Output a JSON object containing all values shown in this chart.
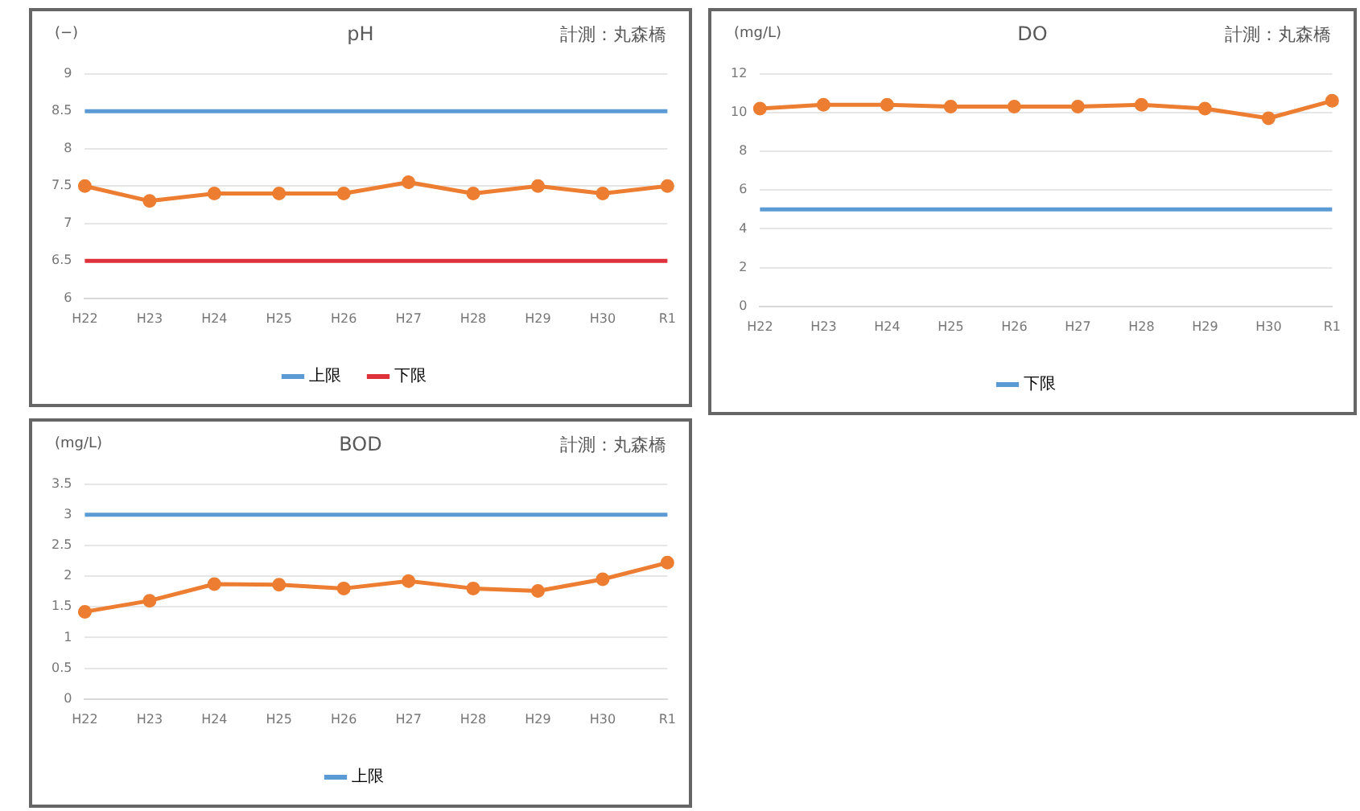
{
  "chart_data": [
    {
      "type": "line",
      "title": "pH",
      "subtitle": "計測：丸森橋",
      "ylabel": "(−)",
      "categories": [
        "H22",
        "H23",
        "H24",
        "H25",
        "H26",
        "H27",
        "H28",
        "H29",
        "H30",
        "R1"
      ],
      "ylim": [
        6,
        9
      ],
      "yticks": [
        6,
        6.5,
        7,
        7.5,
        8,
        8.5,
        9
      ],
      "grid": "y",
      "legend": "bottom",
      "series": [
        {
          "color": "#ed7d31",
          "marker": "circle",
          "values": [
            7.5,
            7.3,
            7.4,
            7.4,
            7.4,
            7.55,
            7.4,
            7.5,
            7.4,
            7.5
          ]
        },
        {
          "name": "上限",
          "color": "#5b9bd5",
          "marker": "none",
          "values": [
            8.5,
            8.5,
            8.5,
            8.5,
            8.5,
            8.5,
            8.5,
            8.5,
            8.5,
            8.5
          ]
        },
        {
          "name": "下限",
          "color": "#e0303c",
          "marker": "none",
          "values": [
            6.5,
            6.5,
            6.5,
            6.5,
            6.5,
            6.5,
            6.5,
            6.5,
            6.5,
            6.5
          ]
        }
      ]
    },
    {
      "type": "line",
      "title": "DO",
      "subtitle": "計測：丸森橋",
      "ylabel": "(mg/L)",
      "categories": [
        "H22",
        "H23",
        "H24",
        "H25",
        "H26",
        "H27",
        "H28",
        "H29",
        "H30",
        "R1"
      ],
      "ylim": [
        0,
        12
      ],
      "yticks": [
        0,
        2,
        4,
        6,
        8,
        10,
        12
      ],
      "grid": "y",
      "legend": "bottom",
      "series": [
        {
          "color": "#ed7d31",
          "marker": "circle",
          "values": [
            10.2,
            10.4,
            10.4,
            10.3,
            10.3,
            10.3,
            10.4,
            10.2,
            9.7,
            10.6
          ]
        },
        {
          "name": "下限",
          "color": "#5b9bd5",
          "marker": "none",
          "values": [
            5,
            5,
            5,
            5,
            5,
            5,
            5,
            5,
            5,
            5
          ]
        }
      ]
    },
    {
      "type": "line",
      "title": "BOD",
      "subtitle": "計測：丸森橋",
      "ylabel": "(mg/L)",
      "categories": [
        "H22",
        "H23",
        "H24",
        "H25",
        "H26",
        "H27",
        "H28",
        "H29",
        "H30",
        "R1"
      ],
      "ylim": [
        0,
        3.5
      ],
      "yticks": [
        0,
        0.5,
        1,
        1.5,
        2,
        2.5,
        3,
        3.5
      ],
      "grid": "y",
      "legend": "bottom",
      "series": [
        {
          "color": "#ed7d31",
          "marker": "circle",
          "values": [
            1.42,
            1.6,
            1.87,
            1.86,
            1.8,
            1.92,
            1.8,
            1.76,
            1.95,
            2.22
          ]
        },
        {
          "name": "上限",
          "color": "#5b9bd5",
          "marker": "none",
          "values": [
            3,
            3,
            3,
            3,
            3,
            3,
            3,
            3,
            3,
            3
          ]
        }
      ]
    }
  ]
}
